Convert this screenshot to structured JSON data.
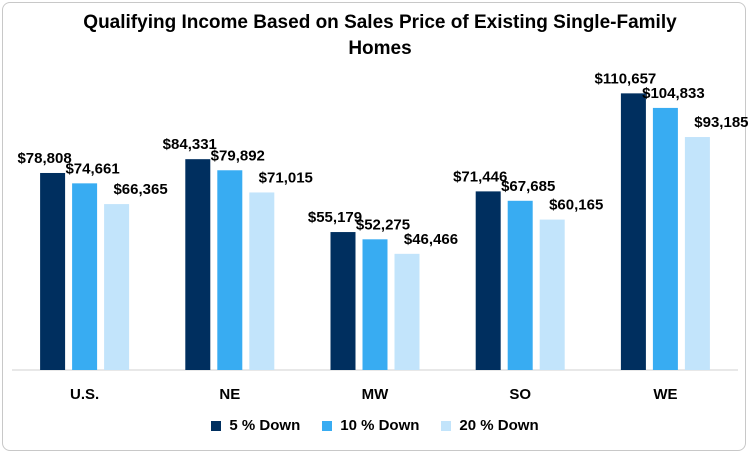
{
  "chart_data": {
    "type": "bar",
    "title": "Qualifying Income Based on Sales Price of Existing Single-Family Homes",
    "categories": [
      "U.S.",
      "NE",
      "MW",
      "SO",
      "WE"
    ],
    "series": [
      {
        "name": "5 % Down",
        "color": "#002f5f",
        "values": [
          78808,
          84331,
          55179,
          71446,
          110657
        ],
        "labels": [
          "$78,808",
          "$84,331",
          "$55,179",
          "$71,446",
          "$110,657"
        ]
      },
      {
        "name": "10 % Down",
        "color": "#38acf2",
        "values": [
          74661,
          79892,
          52275,
          67685,
          104833
        ],
        "labels": [
          "$74,661",
          "$79,892",
          "$52,275",
          "$67,685",
          "$104,833"
        ]
      },
      {
        "name": "20 % Down",
        "color": "#c2e4fb",
        "values": [
          66365,
          71015,
          46466,
          60165,
          93185
        ],
        "labels": [
          "$66,365",
          "$71,015",
          "$46,466",
          "$60,165",
          "$93,185"
        ]
      }
    ],
    "ylim": [
      0,
      120000
    ],
    "grid": false,
    "legend_position": "bottom"
  }
}
